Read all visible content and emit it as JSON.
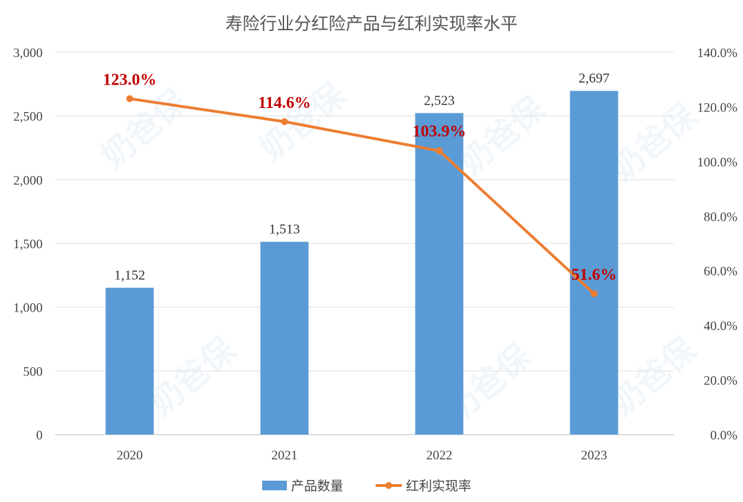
{
  "chart_data": {
    "type": "bar+line",
    "title": "寿险行业分红险产品与红利实现率水平",
    "categories": [
      "2020",
      "2021",
      "2022",
      "2023"
    ],
    "series": [
      {
        "name": "产品数量",
        "type": "bar",
        "axis": "left",
        "values": [
          1152,
          1513,
          2523,
          2697
        ],
        "labels": [
          "1,152",
          "1,513",
          "2,523",
          "2,697"
        ],
        "color": "#5b9bd5"
      },
      {
        "name": "红利实现率",
        "type": "line",
        "axis": "right",
        "values": [
          123.0,
          114.6,
          103.9,
          51.6
        ],
        "labels": [
          "123.0%",
          "114.6%",
          "103.9%",
          "51.6%"
        ],
        "color": "#ed7d31",
        "label_color": "#c00000"
      }
    ],
    "left_axis": {
      "ylim": [
        0,
        3000
      ],
      "ticks": [
        "0",
        "500",
        "1,000",
        "1,500",
        "2,000",
        "2,500",
        "3,000"
      ]
    },
    "right_axis": {
      "ylim": [
        0,
        140
      ],
      "ticks": [
        "0.0%",
        "20.0%",
        "40.0%",
        "60.0%",
        "80.0%",
        "100.0%",
        "120.0%",
        "140.0%"
      ]
    },
    "grid": true,
    "legend": "bottom",
    "watermark": "奶爸保"
  }
}
